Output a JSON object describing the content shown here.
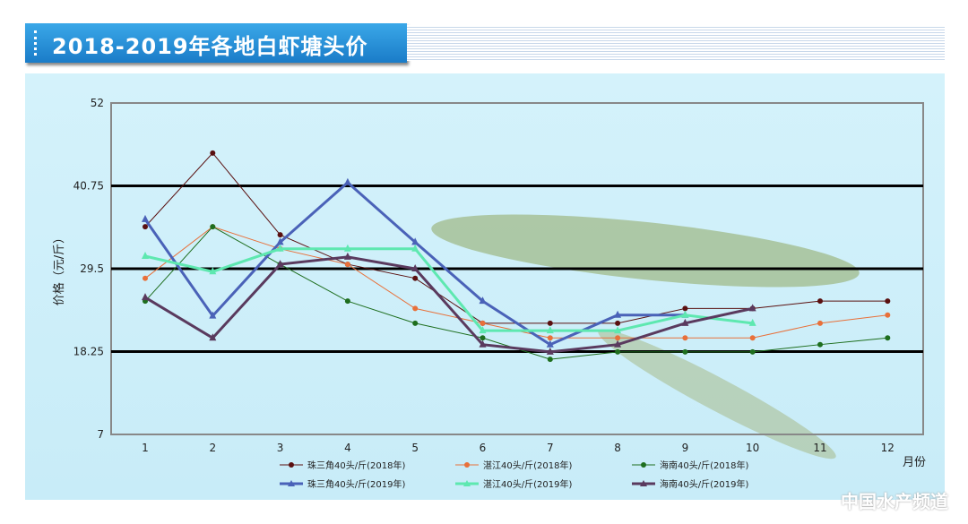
{
  "header": {
    "title": "2018-2019年各地白虾塘头价"
  },
  "watermark": "中国水产频道",
  "chart_data": {
    "type": "line",
    "title": "2018-2019年各地白虾塘头价",
    "xlabel": "月份",
    "ylabel": "价格（元/斤）",
    "categories": [
      "1",
      "2",
      "3",
      "4",
      "5",
      "6",
      "7",
      "8",
      "9",
      "10",
      "11",
      "12"
    ],
    "ylim": [
      7,
      52
    ],
    "yticks": [
      "52",
      "40.75",
      "29.5",
      "18.25",
      "7"
    ],
    "grid": "horizontal major lines at 18.25, 29.5, 40.75",
    "legend": "bottom",
    "series": [
      {
        "name": "珠三角40头/斤(2018年)",
        "color": "#5a1010",
        "marker": "circle",
        "width": 1,
        "values": [
          35.2,
          45.2,
          34.1,
          30.1,
          28.2,
          22.1,
          22.1,
          22.1,
          24.1,
          24.1,
          25.1,
          25.1
        ]
      },
      {
        "name": "湛江40头/斤(2018年)",
        "color": "#e8703a",
        "marker": "circle",
        "width": 1,
        "values": [
          28.2,
          35.2,
          32.2,
          30.1,
          24.1,
          22.1,
          20.1,
          20.1,
          20.1,
          20.1,
          22.1,
          23.2
        ]
      },
      {
        "name": "海南40头/斤(2018年)",
        "color": "#1e6e1e",
        "marker": "circle",
        "width": 1,
        "values": [
          25.1,
          35.2,
          30.1,
          25.1,
          22.1,
          20.1,
          17.2,
          18.2,
          18.2,
          18.2,
          19.2,
          20.1
        ]
      },
      {
        "name": "珠三角40头/斤(2019年)",
        "color": "#4a62b8",
        "marker": "triangle",
        "width": 3,
        "values": [
          36.2,
          23.1,
          33.1,
          41.2,
          33.1,
          25.1,
          19.2,
          23.2,
          23.2,
          null,
          null,
          null
        ]
      },
      {
        "name": "湛江40头/斤(2019年)",
        "color": "#5ee8b0",
        "marker": "triangle",
        "width": 3,
        "values": [
          31.2,
          29.1,
          32.2,
          32.2,
          32.2,
          21.1,
          21.1,
          21.1,
          23.2,
          22.1,
          null,
          null
        ]
      },
      {
        "name": "海南40头/斤(2019年)",
        "color": "#5a3a5e",
        "marker": "triangle",
        "width": 3,
        "values": [
          25.6,
          20.1,
          30.1,
          31.1,
          29.5,
          19.2,
          18.2,
          19.2,
          22.1,
          24.1,
          null,
          null
        ]
      }
    ]
  }
}
